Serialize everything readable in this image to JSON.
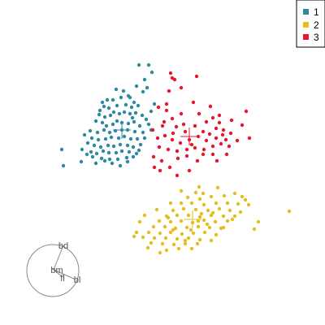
{
  "chart_data": {
    "type": "scatter",
    "title": "",
    "xlabel": "",
    "ylabel": "",
    "legend": {
      "position": "top-right",
      "entries": [
        {
          "label": "1",
          "color": "#2e8aa1"
        },
        {
          "label": "2",
          "color": "#e3be1e"
        },
        {
          "label": "3",
          "color": "#e5182e"
        }
      ]
    },
    "axes_overlay": {
      "labels": [
        "bd",
        "bm",
        "fl",
        "bl"
      ]
    },
    "series": [
      {
        "name": "1",
        "color": "#2e8aa1",
        "centroid": [
          150,
          160
        ],
        "points": [
          [
            183,
            80
          ],
          [
            171,
            80
          ],
          [
            187,
            89
          ],
          [
            178,
            98
          ],
          [
            168,
            106
          ],
          [
            181,
            108
          ],
          [
            176,
            113
          ],
          [
            158,
            118
          ],
          [
            149,
            120
          ],
          [
            139,
            123
          ],
          [
            126,
            126
          ],
          [
            128,
            131
          ],
          [
            134,
            133
          ],
          [
            144,
            130
          ],
          [
            155,
            129
          ],
          [
            162,
            132
          ],
          [
            170,
            130
          ],
          [
            160,
            120
          ],
          [
            165,
            126
          ],
          [
            140,
            138
          ],
          [
            122,
            141
          ],
          [
            129,
            144
          ],
          [
            136,
            142
          ],
          [
            147,
            140
          ],
          [
            153,
            138
          ],
          [
            160,
            140
          ],
          [
            167,
            139
          ],
          [
            175,
            142
          ],
          [
            180,
            147
          ],
          [
            118,
            149
          ],
          [
            126,
            151
          ],
          [
            131,
            155
          ],
          [
            139,
            153
          ],
          [
            144,
            149
          ],
          [
            150,
            151
          ],
          [
            158,
            152
          ],
          [
            165,
            150
          ],
          [
            172,
            155
          ],
          [
            183,
            153
          ],
          [
            111,
            161
          ],
          [
            120,
            163
          ],
          [
            128,
            160
          ],
          [
            135,
            163
          ],
          [
            142,
            161
          ],
          [
            150,
            160
          ],
          [
            157,
            160
          ],
          [
            166,
            162
          ],
          [
            176,
            163
          ],
          [
            186,
            160
          ],
          [
            104,
            166
          ],
          [
            113,
            170
          ],
          [
            121,
            172
          ],
          [
            130,
            171
          ],
          [
            137,
            169
          ],
          [
            146,
            170
          ],
          [
            153,
            168
          ],
          [
            161,
            171
          ],
          [
            169,
            171
          ],
          [
            178,
            170
          ],
          [
            108,
            176
          ],
          [
            116,
            179
          ],
          [
            124,
            181
          ],
          [
            133,
            179
          ],
          [
            140,
            180
          ],
          [
            148,
            178
          ],
          [
            157,
            179
          ],
          [
            164,
            181
          ],
          [
            173,
            178
          ],
          [
            101,
            184
          ],
          [
            112,
            187
          ],
          [
            119,
            189
          ],
          [
            127,
            186
          ],
          [
            134,
            188
          ],
          [
            143,
            188
          ],
          [
            150,
            186
          ],
          [
            159,
            187
          ],
          [
            168,
            189
          ],
          [
            114,
            193
          ],
          [
            125,
            195
          ],
          [
            135,
            196
          ],
          [
            145,
            196
          ],
          [
            156,
            194
          ],
          [
            164,
            193
          ],
          [
            138,
            201
          ],
          [
            76,
            184
          ],
          [
            78,
            204
          ],
          [
            100,
            199
          ],
          [
            148,
            204
          ],
          [
            118,
            201
          ],
          [
            186,
            137
          ],
          [
            190,
            128
          ],
          [
            132,
            123
          ],
          [
            152,
            112
          ],
          [
            143,
            110
          ],
          [
            163,
            145
          ],
          [
            171,
            185
          ],
          [
            129,
            198
          ],
          [
            157,
            199
          ],
          [
            107,
            190
          ],
          [
            123,
            136
          ]
        ]
      },
      {
        "name": "2",
        "color": "#e3be1e",
        "centroid": [
          237,
          270
        ],
        "points": [
          [
            268,
            231
          ],
          [
            250,
            238
          ],
          [
            241,
            237
          ],
          [
            231,
            243
          ],
          [
            246,
            245
          ],
          [
            260,
            242
          ],
          [
            276,
            241
          ],
          [
            289,
            238
          ],
          [
            298,
            242
          ],
          [
            223,
            250
          ],
          [
            236,
            250
          ],
          [
            251,
            252
          ],
          [
            266,
            250
          ],
          [
            280,
            250
          ],
          [
            293,
            251
          ],
          [
            306,
            252
          ],
          [
            213,
            259
          ],
          [
            226,
            257
          ],
          [
            241,
            258
          ],
          [
            256,
            259
          ],
          [
            270,
            257
          ],
          [
            283,
            259
          ],
          [
            296,
            261
          ],
          [
            205,
            266
          ],
          [
            218,
            265
          ],
          [
            232,
            265
          ],
          [
            246,
            267
          ],
          [
            260,
            265
          ],
          [
            275,
            266
          ],
          [
            289,
            266
          ],
          [
            196,
            272
          ],
          [
            210,
            273
          ],
          [
            223,
            272
          ],
          [
            237,
            274
          ],
          [
            251,
            271
          ],
          [
            265,
            273
          ],
          [
            280,
            272
          ],
          [
            189,
            279
          ],
          [
            203,
            279
          ],
          [
            216,
            281
          ],
          [
            230,
            280
          ],
          [
            244,
            279
          ],
          [
            258,
            280
          ],
          [
            272,
            281
          ],
          [
            183,
            286
          ],
          [
            197,
            287
          ],
          [
            210,
            286
          ],
          [
            224,
            288
          ],
          [
            238,
            287
          ],
          [
            252,
            286
          ],
          [
            266,
            289
          ],
          [
            176,
            292
          ],
          [
            190,
            293
          ],
          [
            204,
            293
          ],
          [
            218,
            294
          ],
          [
            232,
            293
          ],
          [
            246,
            295
          ],
          [
            168,
            286
          ],
          [
            165,
            291
          ],
          [
            186,
            299
          ],
          [
            200,
            300
          ],
          [
            214,
            301
          ],
          [
            228,
            300
          ],
          [
            243,
            300
          ],
          [
            260,
            296
          ],
          [
            205,
            308
          ],
          [
            220,
            306
          ],
          [
            236,
            306
          ],
          [
            182,
            305
          ],
          [
            197,
            311
          ],
          [
            213,
            283
          ],
          [
            178,
            265
          ],
          [
            172,
            273
          ],
          [
            193,
            258
          ],
          [
            210,
            250
          ],
          [
            302,
            246
          ],
          [
            318,
            273
          ],
          [
            313,
            282
          ],
          [
            356,
            260
          ],
          [
            223,
            235
          ],
          [
            245,
            230
          ],
          [
            255,
            276
          ],
          [
            235,
            283
          ],
          [
            275,
            280
          ],
          [
            286,
            270
          ],
          [
            262,
            262
          ],
          [
            228,
            296
          ],
          [
            248,
            263
          ],
          [
            207,
            268
          ],
          [
            244,
            272
          ]
        ]
      },
      {
        "name": "3",
        "color": "#e5182e",
        "centroid": [
          233,
          168
        ],
        "points": [
          [
            210,
            90
          ],
          [
            212,
            96
          ],
          [
            242,
            94
          ],
          [
            208,
            112
          ],
          [
            195,
            132
          ],
          [
            205,
            136
          ],
          [
            212,
            146
          ],
          [
            202,
            150
          ],
          [
            217,
            156
          ],
          [
            226,
            153
          ],
          [
            240,
            155
          ],
          [
            254,
            150
          ],
          [
            262,
            145
          ],
          [
            270,
            151
          ],
          [
            266,
            158
          ],
          [
            275,
            160
          ],
          [
            284,
            164
          ],
          [
            278,
            172
          ],
          [
            266,
            170
          ],
          [
            254,
            173
          ],
          [
            244,
            168
          ],
          [
            233,
            172
          ],
          [
            222,
            176
          ],
          [
            212,
            172
          ],
          [
            203,
            167
          ],
          [
            194,
            170
          ],
          [
            188,
            160
          ],
          [
            196,
            181
          ],
          [
            207,
            184
          ],
          [
            218,
            186
          ],
          [
            230,
            184
          ],
          [
            240,
            182
          ],
          [
            251,
            184
          ],
          [
            262,
            180
          ],
          [
            272,
            177
          ],
          [
            282,
            180
          ],
          [
            189,
            193
          ],
          [
            199,
            198
          ],
          [
            209,
            206
          ],
          [
            218,
            216
          ],
          [
            233,
            210
          ],
          [
            243,
            198
          ],
          [
            250,
            190
          ],
          [
            267,
            198
          ],
          [
            279,
            190
          ],
          [
            230,
            192
          ],
          [
            197,
            210
          ],
          [
            298,
            154
          ],
          [
            303,
            137
          ],
          [
            307,
            170
          ],
          [
            270,
            142
          ],
          [
            259,
            131
          ],
          [
            245,
            140
          ],
          [
            223,
            140
          ],
          [
            205,
            128
          ],
          [
            238,
            126
          ],
          [
            223,
            108
          ],
          [
            215,
            98
          ],
          [
            190,
            206
          ],
          [
            262,
            190
          ],
          [
            228,
            162
          ],
          [
            250,
            162
          ],
          [
            274,
            166
          ],
          [
            213,
            164
          ],
          [
            200,
            155
          ],
          [
            258,
            165
          ],
          [
            236,
            178
          ],
          [
            219,
            195
          ],
          [
            285,
            148
          ],
          [
            292,
            173
          ]
        ]
      }
    ]
  }
}
